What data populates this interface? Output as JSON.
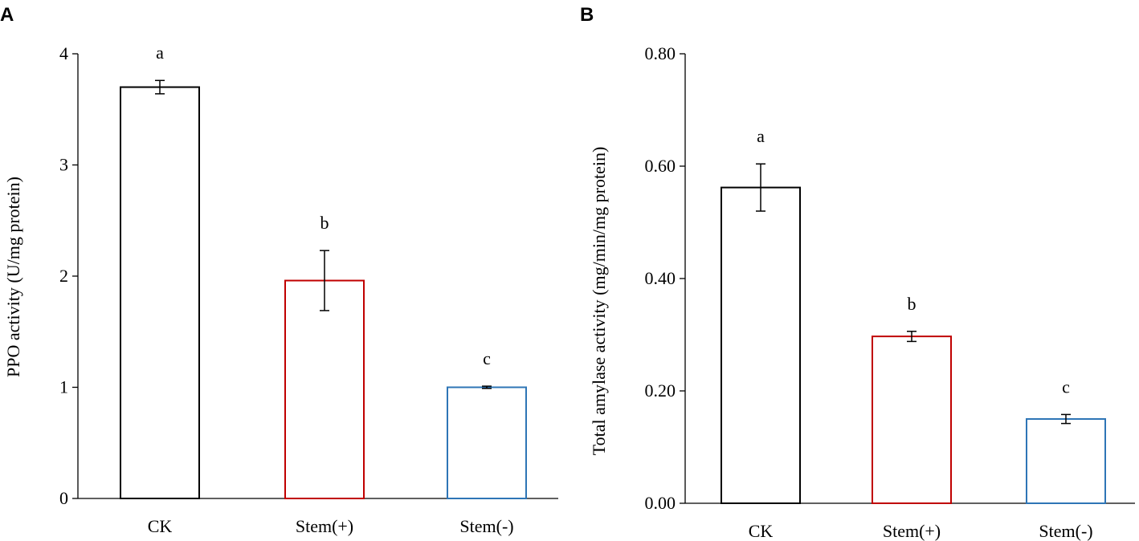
{
  "figure": {
    "panels": [
      "A",
      "B"
    ]
  },
  "chart_data": [
    {
      "panel": "A",
      "type": "bar",
      "title": "",
      "xlabel": "",
      "ylabel": "PPO activity (U/mg protein)",
      "ylim": [
        0,
        4
      ],
      "yticks": [
        0,
        1,
        2,
        3,
        4
      ],
      "ytick_labels": [
        "0",
        "1",
        "2",
        "3",
        "4"
      ],
      "categories": [
        "CK",
        "Stem(+)",
        "Stem(-)"
      ],
      "values": [
        3.7,
        1.96,
        1.0
      ],
      "errors": [
        0.06,
        0.27,
        0.01
      ],
      "significance": [
        "a",
        "b",
        "c"
      ],
      "bar_colors": [
        "#000000",
        "#c00000",
        "#2e75b6"
      ],
      "grid": false,
      "legend": "none"
    },
    {
      "panel": "B",
      "type": "bar",
      "title": "",
      "xlabel": "",
      "ylabel": "Total amylase activity (mg/min/mg protein)",
      "ylim": [
        0,
        0.8
      ],
      "yticks": [
        0,
        0.2,
        0.4,
        0.6,
        0.8
      ],
      "ytick_labels": [
        "0.00",
        "0.20",
        "0.40",
        "0.60",
        "0.80"
      ],
      "categories": [
        "CK",
        "Stem(+)",
        "Stem(-)"
      ],
      "values": [
        0.562,
        0.297,
        0.15
      ],
      "errors": [
        0.042,
        0.009,
        0.008
      ],
      "significance": [
        "a",
        "b",
        "c"
      ],
      "bar_colors": [
        "#000000",
        "#c00000",
        "#2e75b6"
      ],
      "grid": false,
      "legend": "none"
    }
  ]
}
